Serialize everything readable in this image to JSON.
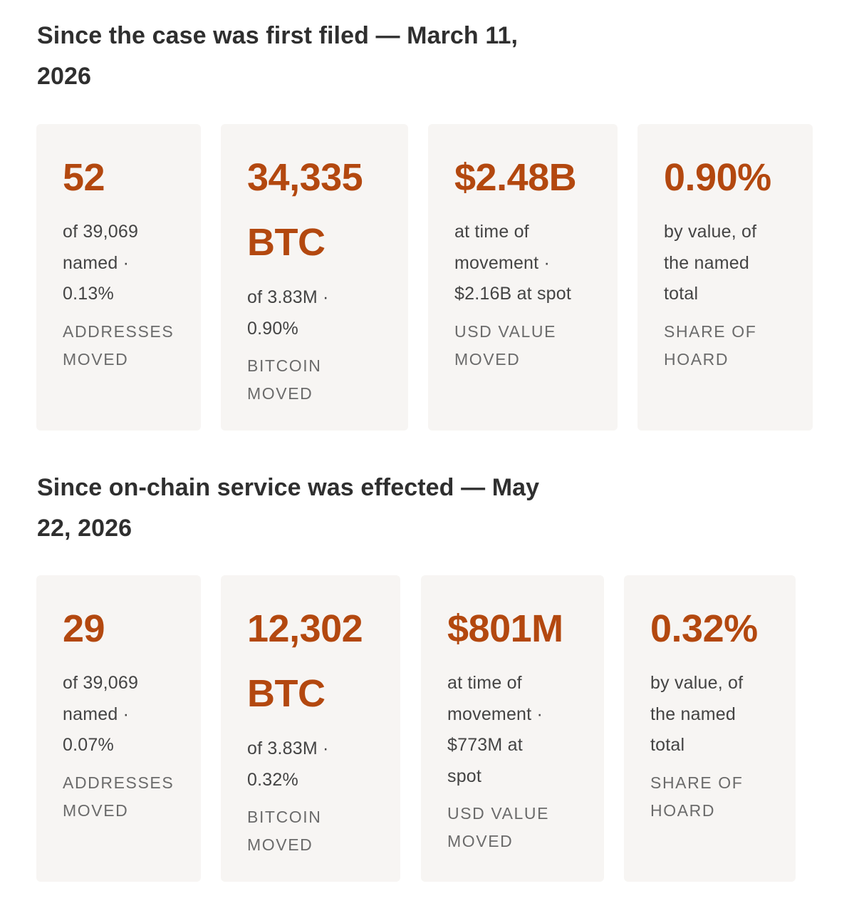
{
  "sections": [
    {
      "title_line1": "Since the case was first filed — March 11,",
      "title_line2": "2026",
      "cards": [
        {
          "value_line1": "52",
          "desc_lines": [
            "of 39,069",
            "named ·",
            "0.13%"
          ],
          "label_lines": [
            "ADDRESSES",
            "MOVED"
          ]
        },
        {
          "value_line1": "34,335",
          "value_line2": "BTC",
          "desc_lines": [
            "of 3.83M ·",
            "0.90%"
          ],
          "label_lines": [
            "BITCOIN",
            "MOVED"
          ]
        },
        {
          "value_line1": "$2.48B",
          "desc_lines": [
            "at time of",
            "movement ·",
            "$2.16B at spot"
          ],
          "label_lines": [
            "USD VALUE",
            "MOVED"
          ]
        },
        {
          "value_line1": "0.90%",
          "desc_lines": [
            "by value, of",
            "the named",
            "total"
          ],
          "label_lines": [
            "SHARE OF",
            "HOARD"
          ]
        }
      ]
    },
    {
      "title_line1": "Since on-chain service was effected — May",
      "title_line2": "22, 2026",
      "cards": [
        {
          "value_line1": "29",
          "desc_lines": [
            "of 39,069",
            "named ·",
            "0.07%"
          ],
          "label_lines": [
            "ADDRESSES",
            "MOVED"
          ]
        },
        {
          "value_line1": "12,302",
          "value_line2": "BTC",
          "desc_lines": [
            "of 3.83M ·",
            "0.32%"
          ],
          "label_lines": [
            "BITCOIN",
            "MOVED"
          ]
        },
        {
          "value_line1": "$801M",
          "desc_lines": [
            "at time of",
            "movement ·",
            "$773M at",
            "spot"
          ],
          "label_lines": [
            "USD VALUE",
            "MOVED"
          ]
        },
        {
          "value_line1": "0.32%",
          "desc_lines": [
            "by value, of",
            "the named",
            "total"
          ],
          "label_lines": [
            "SHARE OF",
            "HOARD"
          ]
        }
      ]
    }
  ]
}
